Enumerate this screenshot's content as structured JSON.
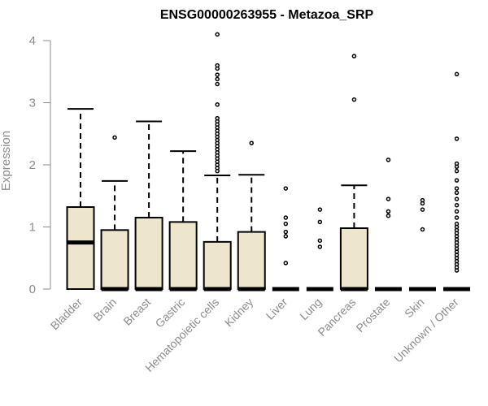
{
  "chart_data": {
    "type": "boxplot",
    "title": "ENSG00000263955 - Metazoa_SRP",
    "xlabel": "",
    "ylabel": "Expression",
    "ylim": [
      0,
      4
    ],
    "yticks": [
      0,
      1,
      2,
      3,
      4
    ],
    "grid": false,
    "legend": "none",
    "colors": {
      "box_fill": "#ede6cc",
      "stroke": "#000000",
      "axis": "#8c8c8c"
    },
    "categories": [
      "Bladder",
      "Brain",
      "Breast",
      "Gastric",
      "Hematopoietic cells",
      "Kidney",
      "Liver",
      "Lung",
      "Pancreas",
      "Prostate",
      "Skin",
      "Unknown / Other"
    ],
    "boxes": [
      {
        "category": "Bladder",
        "min": 0,
        "q1": 0,
        "median": 0.75,
        "q3": 1.32,
        "max": 2.9,
        "outliers": []
      },
      {
        "category": "Brain",
        "min": 0,
        "q1": 0,
        "median": 0,
        "q3": 0.95,
        "max": 1.74,
        "outliers": [
          2.44
        ]
      },
      {
        "category": "Breast",
        "min": 0,
        "q1": 0,
        "median": 0,
        "q3": 1.15,
        "max": 2.7,
        "outliers": []
      },
      {
        "category": "Gastric",
        "min": 0,
        "q1": 0,
        "median": 0,
        "q3": 1.08,
        "max": 2.22,
        "outliers": []
      },
      {
        "category": "Hematopoietic cells",
        "min": 0,
        "q1": 0,
        "median": 0,
        "q3": 0.76,
        "max": 1.83,
        "outliers": [
          1.9,
          1.95,
          2.0,
          2.05,
          2.1,
          2.15,
          2.2,
          2.25,
          2.3,
          2.35,
          2.4,
          2.45,
          2.5,
          2.55,
          2.6,
          2.65,
          2.7,
          2.75,
          2.97,
          3.3,
          3.38,
          3.45,
          3.55,
          3.6,
          4.1
        ]
      },
      {
        "category": "Kidney",
        "min": 0,
        "q1": 0,
        "median": 0,
        "q3": 0.92,
        "max": 1.84,
        "outliers": [
          2.35
        ]
      },
      {
        "category": "Liver",
        "min": 0,
        "q1": 0,
        "median": 0,
        "q3": 0,
        "max": 0,
        "outliers": [
          0.42,
          0.85,
          0.92,
          1.05,
          1.15,
          1.62
        ]
      },
      {
        "category": "Lung",
        "min": 0,
        "q1": 0,
        "median": 0,
        "q3": 0,
        "max": 0,
        "outliers": [
          0.68,
          0.78,
          1.08,
          1.28
        ]
      },
      {
        "category": "Pancreas",
        "min": 0,
        "q1": 0,
        "median": 0,
        "q3": 0.98,
        "max": 1.67,
        "outliers": [
          3.05,
          3.75
        ]
      },
      {
        "category": "Prostate",
        "min": 0,
        "q1": 0,
        "median": 0,
        "q3": 0,
        "max": 0,
        "outliers": [
          1.18,
          1.25,
          1.45,
          2.08
        ]
      },
      {
        "category": "Skin",
        "min": 0,
        "q1": 0,
        "median": 0,
        "q3": 0,
        "max": 0,
        "outliers": [
          0.96,
          1.28,
          1.38,
          1.43
        ]
      },
      {
        "category": "Unknown / Other",
        "min": 0,
        "q1": 0,
        "median": 0,
        "q3": 0,
        "max": 0,
        "outliers": [
          0.3,
          0.35,
          0.4,
          0.45,
          0.5,
          0.55,
          0.6,
          0.65,
          0.7,
          0.75,
          0.8,
          0.85,
          0.9,
          0.95,
          1.0,
          1.05,
          1.15,
          1.25,
          1.35,
          1.45,
          1.55,
          1.62,
          1.75,
          1.9,
          1.97,
          2.02,
          2.42,
          3.46
        ]
      }
    ]
  }
}
